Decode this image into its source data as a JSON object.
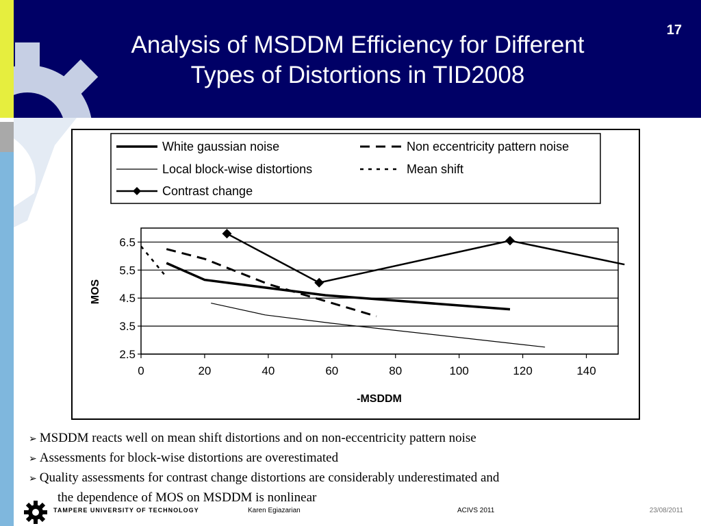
{
  "slide": {
    "title_line1": "Analysis of MSDDM Efficiency for Different",
    "title_line2": "Types of Distortions in TID2008",
    "page_number": "17"
  },
  "bullets": {
    "b1": "MSDDM reacts well on mean shift distortions and on non-eccentricity pattern noise",
    "b2": "Assessments for block-wise distortions are overestimated",
    "b3_line1": "Quality assessments for contrast change distortions are considerably underestimated and",
    "b3_line2": "the dependence of MOS on MSDDM is nonlinear"
  },
  "footer": {
    "university": "TAMPERE UNIVERSITY OF TECHNOLOGY",
    "author": "Karen Egiazarian",
    "conference": "ACIVS 2011",
    "date": "23/08/2011"
  },
  "colors": {
    "header_bg": "#000066",
    "accent_yellow": "#e6ee3e",
    "accent_blue": "#7fb7dd"
  },
  "chart_data": {
    "type": "line",
    "xlabel": "-MSDDM",
    "ylabel": "MOS",
    "xlim": [
      0,
      150
    ],
    "ylim": [
      2.5,
      7.0
    ],
    "xticks": [
      0,
      20,
      40,
      60,
      80,
      100,
      120,
      140
    ],
    "yticks": [
      2.5,
      3.5,
      4.5,
      5.5,
      6.5
    ],
    "xtick_labels": [
      "0",
      "20",
      "40",
      "60",
      "80",
      "100",
      "120",
      "140"
    ],
    "ytick_labels": [
      "2.5",
      "3.5",
      "4.5",
      "5.5",
      "6.5"
    ],
    "grid": "horizontal",
    "legend_position": "top",
    "series": [
      {
        "name": "White gaussian noise",
        "style": "thick",
        "x": [
          8,
          20,
          58,
          116
        ],
        "y": [
          5.75,
          5.15,
          4.6,
          4.1
        ]
      },
      {
        "name": "Non eccentricity pattern noise",
        "style": "longdash",
        "x": [
          8,
          20,
          40,
          74
        ],
        "y": [
          6.25,
          5.9,
          5.0,
          3.85
        ]
      },
      {
        "name": "Local block-wise distortions",
        "style": "thin",
        "x": [
          22,
          39,
          60,
          127
        ],
        "y": [
          4.32,
          3.9,
          3.6,
          2.75
        ]
      },
      {
        "name": "Mean shift",
        "style": "shortdash",
        "x": [
          0,
          8
        ],
        "y": [
          6.35,
          5.25
        ]
      },
      {
        "name": "Contrast change",
        "style": "marker",
        "x": [
          27,
          56,
          116,
          152
        ],
        "y": [
          6.8,
          5.05,
          6.55,
          5.7
        ]
      }
    ]
  }
}
